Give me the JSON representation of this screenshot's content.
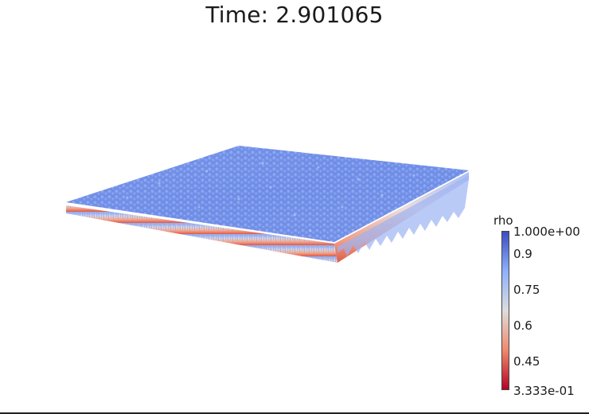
{
  "title": "Time: 2.901065",
  "colorbar": {
    "label": "rho",
    "max_label": "1.000e+00",
    "min_label": "3.333e-01",
    "ticks": [
      {
        "label": "0.9",
        "value": 0.9
      },
      {
        "label": "0.75",
        "value": 0.75
      },
      {
        "label": "0.6",
        "value": 0.6
      },
      {
        "label": "0.45",
        "value": 0.45
      }
    ],
    "range": [
      0.3333,
      1.0
    ],
    "colormap": [
      "#b40426",
      "#f08a6c",
      "#dddddd",
      "#8db0fe",
      "#3b4cc0"
    ]
  },
  "colors": {
    "surface_top": "#6f8fe6",
    "surface_edge_low": "#e7745b",
    "background": "#ffffff"
  }
}
